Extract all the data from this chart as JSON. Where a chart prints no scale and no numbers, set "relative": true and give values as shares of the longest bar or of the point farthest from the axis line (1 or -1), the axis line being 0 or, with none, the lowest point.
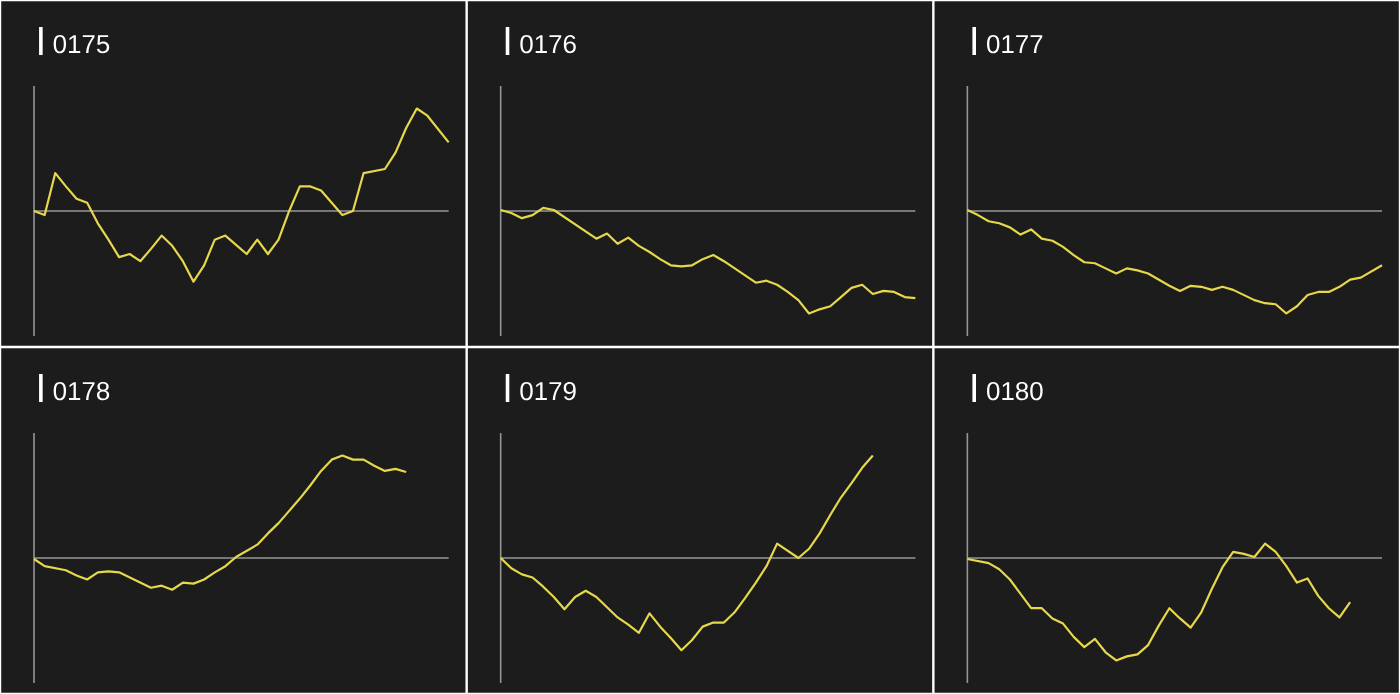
{
  "chart_data": [
    {
      "type": "line",
      "title": "0175",
      "relative": true,
      "color": "#e6d84a",
      "categories": [
        null,
        null,
        null,
        null,
        null,
        null,
        null,
        null,
        null,
        null,
        null,
        null,
        null,
        null,
        null,
        null,
        null,
        null,
        null,
        null,
        null,
        null,
        null,
        null,
        null,
        null,
        null,
        null,
        null,
        null,
        null,
        null,
        null,
        null,
        null,
        null,
        null,
        null,
        null,
        null
      ],
      "values": [
        0,
        -0.04,
        0.37,
        0.24,
        0.12,
        0.08,
        -0.12,
        -0.28,
        -0.45,
        -0.42,
        -0.49,
        -0.37,
        -0.24,
        -0.34,
        -0.49,
        -0.69,
        -0.53,
        -0.28,
        -0.24,
        -0.33,
        -0.42,
        -0.28,
        -0.42,
        -0.28,
        0,
        0.24,
        0.24,
        0.2,
        0.08,
        -0.04,
        0,
        0.37,
        0.39,
        0.41,
        0.57,
        0.81,
        1,
        0.93,
        0.8,
        0.67
      ]
    },
    {
      "type": "line",
      "title": "0176",
      "relative": true,
      "color": "#e6d84a",
      "categories": [
        null,
        null,
        null,
        null,
        null,
        null,
        null,
        null,
        null,
        null,
        null,
        null,
        null,
        null,
        null,
        null,
        null,
        null,
        null,
        null,
        null,
        null,
        null,
        null,
        null,
        null,
        null,
        null,
        null,
        null,
        null,
        null,
        null,
        null,
        null,
        null,
        null,
        null,
        null,
        null
      ],
      "values": [
        0.01,
        -0.02,
        -0.07,
        -0.04,
        0.03,
        0.01,
        -0.06,
        -0.13,
        -0.2,
        -0.27,
        -0.22,
        -0.32,
        -0.26,
        -0.34,
        -0.4,
        -0.47,
        -0.53,
        -0.54,
        -0.53,
        -0.47,
        -0.43,
        -0.49,
        -0.56,
        -0.63,
        -0.7,
        -0.68,
        -0.72,
        -0.79,
        -0.87,
        -1,
        -0.96,
        -0.93,
        -0.84,
        -0.75,
        -0.72,
        -0.81,
        -0.78,
        -0.79,
        -0.84,
        -0.85
      ]
    },
    {
      "type": "line",
      "title": "0177",
      "relative": true,
      "color": "#e6d84a",
      "categories": [
        null,
        null,
        null,
        null,
        null,
        null,
        null,
        null,
        null,
        null,
        null,
        null,
        null,
        null,
        null,
        null,
        null,
        null,
        null,
        null,
        null,
        null,
        null,
        null,
        null,
        null,
        null,
        null,
        null,
        null,
        null,
        null,
        null,
        null,
        null,
        null,
        null,
        null,
        null,
        null
      ],
      "values": [
        0.01,
        -0.04,
        -0.1,
        -0.12,
        -0.16,
        -0.23,
        -0.18,
        -0.27,
        -0.29,
        -0.35,
        -0.43,
        -0.5,
        -0.51,
        -0.56,
        -0.61,
        -0.56,
        -0.58,
        -0.61,
        -0.67,
        -0.73,
        -0.78,
        -0.73,
        -0.74,
        -0.77,
        -0.74,
        -0.77,
        -0.82,
        -0.87,
        -0.9,
        -0.91,
        -1,
        -0.93,
        -0.82,
        -0.79,
        -0.79,
        -0.74,
        -0.67,
        -0.65,
        -0.59,
        -0.53
      ]
    },
    {
      "type": "line",
      "title": "0178",
      "relative": true,
      "color": "#e6d84a",
      "categories": [
        null,
        null,
        null,
        null,
        null,
        null,
        null,
        null,
        null,
        null,
        null,
        null,
        null,
        null,
        null,
        null,
        null,
        null,
        null,
        null,
        null,
        null,
        null,
        null,
        null,
        null,
        null,
        null,
        null,
        null,
        null,
        null,
        null,
        null,
        null,
        null,
        null,
        null,
        null,
        null
      ],
      "values": [
        -0.01,
        -0.08,
        -0.1,
        -0.12,
        -0.17,
        -0.21,
        -0.14,
        -0.13,
        -0.14,
        -0.19,
        -0.24,
        -0.29,
        -0.27,
        -0.31,
        -0.24,
        -0.25,
        -0.21,
        -0.14,
        -0.08,
        0.01,
        0.07,
        0.13,
        0.24,
        0.34,
        0.46,
        0.58,
        0.71,
        0.85,
        0.96,
        1,
        0.96,
        0.96,
        0.9,
        0.85,
        0.87,
        0.84,
        null,
        null,
        null,
        null
      ]
    },
    {
      "type": "line",
      "title": "0179",
      "relative": true,
      "color": "#e6d84a",
      "categories": [
        null,
        null,
        null,
        null,
        null,
        null,
        null,
        null,
        null,
        null,
        null,
        null,
        null,
        null,
        null,
        null,
        null,
        null,
        null,
        null,
        null,
        null,
        null,
        null,
        null,
        null,
        null,
        null,
        null,
        null,
        null,
        null,
        null,
        null,
        null,
        null,
        null,
        null,
        null,
        null
      ],
      "values": [
        0,
        -0.1,
        -0.16,
        -0.19,
        -0.28,
        -0.38,
        -0.5,
        -0.38,
        -0.32,
        -0.38,
        -0.48,
        -0.58,
        -0.65,
        -0.73,
        -0.54,
        -0.67,
        -0.78,
        -0.9,
        -0.8,
        -0.67,
        -0.63,
        -0.63,
        -0.53,
        -0.39,
        -0.24,
        -0.08,
        0.14,
        0.07,
        0,
        0.09,
        0.24,
        0.42,
        0.59,
        0.73,
        0.88,
        1,
        null,
        null,
        null,
        null
      ]
    },
    {
      "type": "line",
      "title": "0180",
      "relative": true,
      "color": "#e6d84a",
      "categories": [
        null,
        null,
        null,
        null,
        null,
        null,
        null,
        null,
        null,
        null,
        null,
        null,
        null,
        null,
        null,
        null,
        null,
        null,
        null,
        null,
        null,
        null,
        null,
        null,
        null,
        null,
        null,
        null,
        null,
        null,
        null,
        null,
        null,
        null,
        null,
        null,
        null,
        null,
        null,
        null
      ],
      "values": [
        -0.01,
        -0.03,
        -0.05,
        -0.11,
        -0.21,
        -0.35,
        -0.49,
        -0.49,
        -0.59,
        -0.64,
        -0.77,
        -0.87,
        -0.79,
        -0.92,
        -1,
        -0.96,
        -0.94,
        -0.85,
        -0.66,
        -0.49,
        -0.59,
        -0.68,
        -0.53,
        -0.3,
        -0.09,
        0.06,
        0.04,
        0.01,
        0.14,
        0.06,
        -0.08,
        -0.24,
        -0.2,
        -0.37,
        -0.49,
        -0.58,
        -0.43,
        null,
        null,
        null
      ]
    }
  ]
}
